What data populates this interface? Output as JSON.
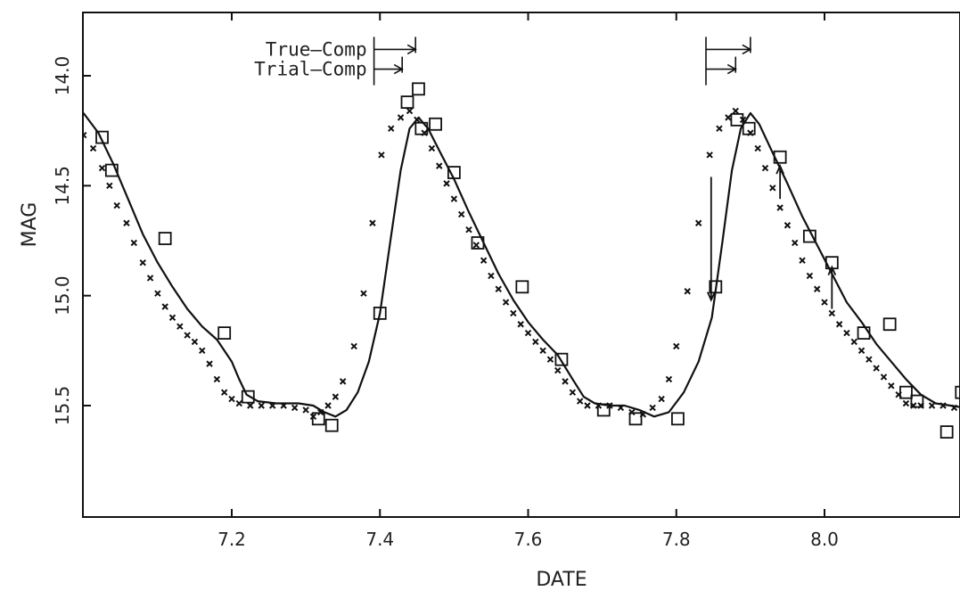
{
  "chart_data": {
    "type": "scatter",
    "xlabel": "DATE",
    "ylabel": "MAG",
    "xlim": [
      7.0,
      8.19
    ],
    "ylim": [
      16.0,
      14.2
    ],
    "y_inverted": true,
    "grid": false,
    "xticks": [
      {
        "value": 7.2,
        "label": "7.2"
      },
      {
        "value": 7.4,
        "label": "7.4"
      },
      {
        "value": 7.6,
        "label": "7.6"
      },
      {
        "value": 7.8,
        "label": "7.8"
      },
      {
        "value": 8.0,
        "label": "8.0"
      }
    ],
    "yticks": [
      {
        "value": 14.0,
        "label": "14.0"
      },
      {
        "value": 14.5,
        "label": "14.5"
      },
      {
        "value": 15.0,
        "label": "15.0"
      },
      {
        "value": 15.5,
        "label": "15.5"
      }
    ],
    "annotations": [
      {
        "text": "True–Comp",
        "x_start": 7.392,
        "x_end": 7.448,
        "y": 13.88
      },
      {
        "text": "Trial–Comp",
        "x_start": 7.392,
        "x_end": 7.43,
        "y": 13.97
      },
      {
        "text": "",
        "x_start": 7.84,
        "x_end": 7.9,
        "y": 13.88
      },
      {
        "text": "",
        "x_start": 7.84,
        "x_end": 7.88,
        "y": 13.97
      }
    ],
    "series": [
      {
        "marker": "cross",
        "points": [
          [
            7.0,
            14.27
          ],
          [
            7.013,
            14.33
          ],
          [
            7.025,
            14.42
          ],
          [
            7.035,
            14.5
          ],
          [
            7.045,
            14.59
          ],
          [
            7.058,
            14.67
          ],
          [
            7.068,
            14.76
          ],
          [
            7.08,
            14.85
          ],
          [
            7.09,
            14.92
          ],
          [
            7.1,
            14.99
          ],
          [
            7.11,
            15.05
          ],
          [
            7.12,
            15.1
          ],
          [
            7.13,
            15.14
          ],
          [
            7.14,
            15.18
          ],
          [
            7.15,
            15.21
          ],
          [
            7.16,
            15.25
          ],
          [
            7.17,
            15.31
          ],
          [
            7.18,
            15.38
          ],
          [
            7.19,
            15.44
          ],
          [
            7.2,
            15.47
          ],
          [
            7.21,
            15.49
          ],
          [
            7.225,
            15.5
          ],
          [
            7.24,
            15.5
          ],
          [
            7.255,
            15.5
          ],
          [
            7.27,
            15.5
          ],
          [
            7.285,
            15.51
          ],
          [
            7.3,
            15.52
          ],
          [
            7.31,
            15.55
          ],
          [
            7.32,
            15.53
          ],
          [
            7.33,
            15.5
          ],
          [
            7.34,
            15.46
          ],
          [
            7.35,
            15.39
          ],
          [
            7.365,
            15.23
          ],
          [
            7.378,
            14.99
          ],
          [
            7.39,
            14.67
          ],
          [
            7.402,
            14.36
          ],
          [
            7.415,
            14.24
          ],
          [
            7.428,
            14.19
          ],
          [
            7.44,
            14.16
          ],
          [
            7.45,
            14.2
          ],
          [
            7.46,
            14.26
          ],
          [
            7.47,
            14.33
          ],
          [
            7.48,
            14.41
          ],
          [
            7.49,
            14.49
          ],
          [
            7.5,
            14.56
          ],
          [
            7.51,
            14.63
          ],
          [
            7.52,
            14.7
          ],
          [
            7.53,
            14.77
          ],
          [
            7.54,
            14.84
          ],
          [
            7.55,
            14.91
          ],
          [
            7.56,
            14.97
          ],
          [
            7.57,
            15.03
          ],
          [
            7.58,
            15.08
          ],
          [
            7.59,
            15.13
          ],
          [
            7.6,
            15.17
          ],
          [
            7.61,
            15.21
          ],
          [
            7.62,
            15.25
          ],
          [
            7.63,
            15.29
          ],
          [
            7.64,
            15.34
          ],
          [
            7.65,
            15.39
          ],
          [
            7.66,
            15.44
          ],
          [
            7.67,
            15.48
          ],
          [
            7.68,
            15.5
          ],
          [
            7.695,
            15.5
          ],
          [
            7.71,
            15.5
          ],
          [
            7.725,
            15.51
          ],
          [
            7.74,
            15.53
          ],
          [
            7.755,
            15.54
          ],
          [
            7.768,
            15.51
          ],
          [
            7.78,
            15.47
          ],
          [
            7.79,
            15.38
          ],
          [
            7.8,
            15.23
          ],
          [
            7.815,
            14.98
          ],
          [
            7.83,
            14.67
          ],
          [
            7.845,
            14.36
          ],
          [
            7.858,
            14.24
          ],
          [
            7.87,
            14.19
          ],
          [
            7.88,
            14.16
          ],
          [
            7.89,
            14.2
          ],
          [
            7.9,
            14.26
          ],
          [
            7.91,
            14.33
          ],
          [
            7.92,
            14.42
          ],
          [
            7.93,
            14.51
          ],
          [
            7.94,
            14.6
          ],
          [
            7.95,
            14.68
          ],
          [
            7.96,
            14.76
          ],
          [
            7.97,
            14.84
          ],
          [
            7.98,
            14.91
          ],
          [
            7.99,
            14.97
          ],
          [
            8.0,
            15.03
          ],
          [
            8.01,
            15.08
          ],
          [
            8.02,
            15.13
          ],
          [
            8.03,
            15.17
          ],
          [
            8.04,
            15.21
          ],
          [
            8.05,
            15.25
          ],
          [
            8.06,
            15.29
          ],
          [
            8.07,
            15.33
          ],
          [
            8.08,
            15.37
          ],
          [
            8.09,
            15.41
          ],
          [
            8.1,
            15.45
          ],
          [
            8.11,
            15.49
          ],
          [
            8.12,
            15.5
          ],
          [
            8.13,
            15.5
          ],
          [
            8.145,
            15.5
          ],
          [
            8.16,
            15.5
          ],
          [
            8.175,
            15.51
          ],
          [
            8.19,
            15.51
          ]
        ]
      },
      {
        "marker": "open-square",
        "points": [
          [
            7.025,
            14.28
          ],
          [
            7.038,
            14.43
          ],
          [
            7.11,
            14.74
          ],
          [
            7.19,
            15.17
          ],
          [
            7.222,
            15.46
          ],
          [
            7.317,
            15.56
          ],
          [
            7.335,
            15.59
          ],
          [
            7.4,
            15.08
          ],
          [
            7.437,
            14.12
          ],
          [
            7.452,
            14.06
          ],
          [
            7.456,
            14.24
          ],
          [
            7.475,
            14.22
          ],
          [
            7.5,
            14.44
          ],
          [
            7.532,
            14.76
          ],
          [
            7.592,
            14.96
          ],
          [
            7.645,
            15.29
          ],
          [
            7.702,
            15.52
          ],
          [
            7.745,
            15.56
          ],
          [
            7.802,
            15.56
          ],
          [
            7.853,
            14.96
          ],
          [
            7.882,
            14.2
          ],
          [
            7.898,
            14.24
          ],
          [
            7.94,
            14.37
          ],
          [
            7.98,
            14.73
          ],
          [
            8.01,
            14.85
          ],
          [
            8.053,
            15.17
          ],
          [
            8.088,
            15.13
          ],
          [
            8.11,
            15.44
          ],
          [
            8.125,
            15.48
          ],
          [
            8.165,
            15.62
          ],
          [
            8.185,
            15.44
          ]
        ]
      },
      {
        "marker": "solid-line",
        "points": [
          [
            7.0,
            14.17
          ],
          [
            7.02,
            14.26
          ],
          [
            7.04,
            14.4
          ],
          [
            7.06,
            14.56
          ],
          [
            7.08,
            14.72
          ],
          [
            7.1,
            14.85
          ],
          [
            7.12,
            14.96
          ],
          [
            7.14,
            15.06
          ],
          [
            7.16,
            15.14
          ],
          [
            7.18,
            15.2
          ],
          [
            7.2,
            15.3
          ],
          [
            7.21,
            15.38
          ],
          [
            7.22,
            15.45
          ],
          [
            7.235,
            15.48
          ],
          [
            7.26,
            15.49
          ],
          [
            7.29,
            15.49
          ],
          [
            7.31,
            15.5
          ],
          [
            7.325,
            15.53
          ],
          [
            7.34,
            15.55
          ],
          [
            7.355,
            15.52
          ],
          [
            7.37,
            15.44
          ],
          [
            7.385,
            15.3
          ],
          [
            7.4,
            15.08
          ],
          [
            7.415,
            14.73
          ],
          [
            7.428,
            14.43
          ],
          [
            7.44,
            14.24
          ],
          [
            7.452,
            14.19
          ],
          [
            7.465,
            14.24
          ],
          [
            7.48,
            14.34
          ],
          [
            7.5,
            14.47
          ],
          [
            7.52,
            14.62
          ],
          [
            7.54,
            14.76
          ],
          [
            7.56,
            14.9
          ],
          [
            7.58,
            15.02
          ],
          [
            7.6,
            15.12
          ],
          [
            7.62,
            15.2
          ],
          [
            7.64,
            15.27
          ],
          [
            7.66,
            15.38
          ],
          [
            7.675,
            15.46
          ],
          [
            7.69,
            15.49
          ],
          [
            7.71,
            15.5
          ],
          [
            7.73,
            15.5
          ],
          [
            7.75,
            15.52
          ],
          [
            7.77,
            15.55
          ],
          [
            7.79,
            15.53
          ],
          [
            7.81,
            15.44
          ],
          [
            7.83,
            15.3
          ],
          [
            7.848,
            15.1
          ],
          [
            7.862,
            14.76
          ],
          [
            7.875,
            14.43
          ],
          [
            7.887,
            14.24
          ],
          [
            7.9,
            14.17
          ],
          [
            7.912,
            14.22
          ],
          [
            7.93,
            14.35
          ],
          [
            7.95,
            14.49
          ],
          [
            7.97,
            14.64
          ],
          [
            7.99,
            14.77
          ],
          [
            8.01,
            14.9
          ],
          [
            8.03,
            15.03
          ],
          [
            8.05,
            15.12
          ],
          [
            8.07,
            15.22
          ],
          [
            8.09,
            15.3
          ],
          [
            8.11,
            15.38
          ],
          [
            8.13,
            15.45
          ],
          [
            8.15,
            15.49
          ],
          [
            8.17,
            15.5
          ],
          [
            8.19,
            15.51
          ]
        ]
      }
    ],
    "corrections": [
      {
        "x": 7.847,
        "from": 14.46,
        "to": 15.02
      },
      {
        "x": 7.94,
        "from": 14.56,
        "to": 14.41
      },
      {
        "x": 8.01,
        "from": 15.06,
        "to": 14.87
      }
    ]
  }
}
